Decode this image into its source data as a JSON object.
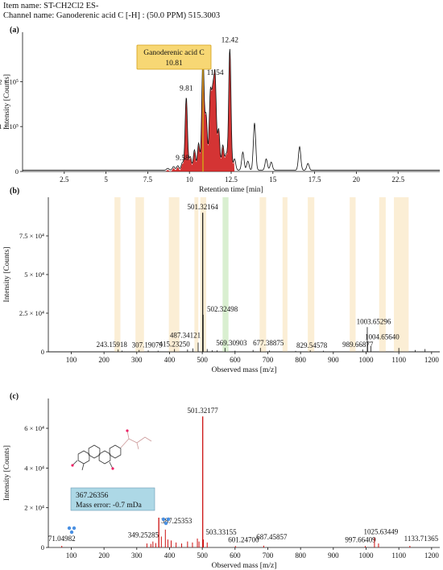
{
  "header": {
    "item_name_label": "Item name: ST-CH2Cl2 ES-",
    "channel_label": "Channel name: Ganoderenic acid C [-H] : (50.0 PPM) 515.3003"
  },
  "colors": {
    "trace": "#111111",
    "highlight_red": "#cc1111",
    "callout_fill": "#f7d774",
    "callout_border": "#d4a017",
    "band": "#fbeed5",
    "band_green": "#d9efd0",
    "label_box": "#add8e6",
    "molecule_icon": "#4a90e2"
  },
  "chart_data": [
    {
      "panel": "(a)",
      "type": "line",
      "xlabel": "Retention time [min]",
      "ylabel": "Intensity [Counts]",
      "xlim": [
        0,
        25
      ],
      "ylim": [
        0,
        310000
      ],
      "xticks": [
        2.5,
        5,
        7.5,
        10,
        12.5,
        15,
        17.5,
        20,
        22.5
      ],
      "yticks": [
        {
          "value": 0,
          "label": "0"
        },
        {
          "value": 100000,
          "label": "1 × 10⁵"
        },
        {
          "value": 200000,
          "label": "2 × 10⁵"
        }
      ],
      "callout": {
        "name": "Ganoderenic acid C",
        "value": "10.81"
      },
      "annotations": [
        {
          "x": 9.58,
          "y": 20000,
          "label": "9.58"
        },
        {
          "x": 9.81,
          "y": 175000,
          "label": "9.81"
        },
        {
          "x": 11.54,
          "y": 210000,
          "label": "11.54"
        },
        {
          "x": 12.42,
          "y": 282000,
          "label": "12.42"
        }
      ],
      "peaks": [
        {
          "x": 8.7,
          "h": 4000
        },
        {
          "x": 9.05,
          "h": 8000
        },
        {
          "x": 9.3,
          "h": 10000
        },
        {
          "x": 9.58,
          "h": 17000
        },
        {
          "x": 9.81,
          "h": 162000
        },
        {
          "x": 10.05,
          "h": 30000
        },
        {
          "x": 10.3,
          "h": 45000
        },
        {
          "x": 10.55,
          "h": 60000
        },
        {
          "x": 10.81,
          "h": 255000
        },
        {
          "x": 11.0,
          "h": 120000
        },
        {
          "x": 11.25,
          "h": 165000
        },
        {
          "x": 11.4,
          "h": 150000
        },
        {
          "x": 11.54,
          "h": 198000
        },
        {
          "x": 11.75,
          "h": 90000
        },
        {
          "x": 12.0,
          "h": 55000
        },
        {
          "x": 12.2,
          "h": 35000
        },
        {
          "x": 12.42,
          "h": 270000
        },
        {
          "x": 12.7,
          "h": 25000
        },
        {
          "x": 13.2,
          "h": 40000
        },
        {
          "x": 13.5,
          "h": 20000
        },
        {
          "x": 13.9,
          "h": 105000
        },
        {
          "x": 14.6,
          "h": 25000
        },
        {
          "x": 14.9,
          "h": 18000
        },
        {
          "x": 16.6,
          "h": 52000
        },
        {
          "x": 17.1,
          "h": 15000
        }
      ],
      "red_range": [
        8.6,
        12.7
      ]
    },
    {
      "panel": "(b)",
      "type": "bar",
      "xlabel": "Observed mass [m/z]",
      "ylabel": "Intensity [Counts]",
      "xlim": [
        30,
        1225
      ],
      "ylim": [
        0,
        100000
      ],
      "xticks": [
        100,
        200,
        300,
        400,
        500,
        600,
        700,
        800,
        900,
        1000,
        1100,
        1200
      ],
      "yticks": [
        {
          "value": 0,
          "label": "0"
        },
        {
          "value": 25000,
          "label": "2.5 × 10⁴"
        },
        {
          "value": 50000,
          "label": "5 × 10⁴"
        },
        {
          "value": 75000,
          "label": "7.5 × 10⁴"
        }
      ],
      "bands": [
        [
          232,
          250,
          "band"
        ],
        [
          296,
          322,
          "band"
        ],
        [
          398,
          430,
          "band"
        ],
        [
          476,
          488,
          "band"
        ],
        [
          494,
          512,
          "band"
        ],
        [
          562,
          580,
          "band_green"
        ],
        [
          675,
          695,
          "band"
        ],
        [
          745,
          760,
          "band"
        ],
        [
          822,
          842,
          "band"
        ],
        [
          950,
          968,
          "band"
        ],
        [
          1040,
          1060,
          "band"
        ],
        [
          1085,
          1130,
          "band"
        ]
      ],
      "labeled_peaks": [
        {
          "mz": "243.15918",
          "x": 243.16,
          "y": 1500
        },
        {
          "mz": "307.19079",
          "x": 307.19,
          "y": 1200
        },
        {
          "mz": "415.23250",
          "x": 415.23,
          "y": 1800
        },
        {
          "mz": "487.34121",
          "x": 487.34,
          "y": 6000
        },
        {
          "mz": "501.32164",
          "x": 501.32,
          "y": 90000
        },
        {
          "mz": "502.32498",
          "x": 502.32,
          "y": 24000
        },
        {
          "mz": "569.30903",
          "x": 569.31,
          "y": 2500
        },
        {
          "mz": "677.38875",
          "x": 677.39,
          "y": 2500
        },
        {
          "mz": "829.54578",
          "x": 829.55,
          "y": 1000
        },
        {
          "mz": "989.66877",
          "x": 989.67,
          "y": 1500
        },
        {
          "mz": "1003.65296",
          "x": 1003.65,
          "y": 16000
        },
        {
          "mz": "1004.65640",
          "x": 1004.66,
          "y": 6000
        }
      ],
      "minor_peaks": [
        [
          255,
          800
        ],
        [
          335,
          900
        ],
        [
          365,
          700
        ],
        [
          455,
          1500
        ],
        [
          471,
          2200
        ],
        [
          515,
          1800
        ],
        [
          530,
          1000
        ],
        [
          545,
          900
        ],
        [
          600,
          700
        ],
        [
          655,
          1200
        ],
        [
          705,
          800
        ],
        [
          785,
          600
        ],
        [
          870,
          700
        ],
        [
          1015,
          3500
        ],
        [
          1100,
          2500
        ],
        [
          1150,
          1200
        ],
        [
          1180,
          1800
        ]
      ]
    },
    {
      "panel": "(c)",
      "type": "bar",
      "xlabel": "Observed mass [m/z]",
      "ylabel": "Intensity [Counts]",
      "xlim": [
        30,
        1225
      ],
      "ylim": [
        0,
        75000
      ],
      "xticks": [
        100,
        200,
        300,
        400,
        500,
        600,
        700,
        800,
        900,
        1000,
        1100,
        1200
      ],
      "yticks": [
        {
          "value": 0,
          "label": "0"
        },
        {
          "value": 20000,
          "label": "2 × 10⁴"
        },
        {
          "value": 40000,
          "label": "4 × 10⁴"
        },
        {
          "value": 60000,
          "label": "6 × 10⁴"
        }
      ],
      "fragment_box": {
        "mz": "367.26356",
        "error": "Mass error: -0.7 mDa"
      },
      "labeled_peaks": [
        {
          "mz": "71.04982",
          "x": 71.05,
          "y": 800
        },
        {
          "mz": "349.25285",
          "x": 349.25,
          "y": 3000
        },
        {
          "mz": "367.26356",
          "x": 367.26,
          "y": 15000
        },
        {
          "mz": "387.25353",
          "x": 387.25,
          "y": 9000
        },
        {
          "mz": "501.32177",
          "x": 501.32,
          "y": 66000
        },
        {
          "mz": "503.33155",
          "x": 503.33,
          "y": 4000
        },
        {
          "mz": "601.24700",
          "x": 601.25,
          "y": 700
        },
        {
          "mz": "687.45857",
          "x": 687.46,
          "y": 900
        },
        {
          "mz": "997.66409",
          "x": 997.66,
          "y": 700
        },
        {
          "mz": "1025.63449",
          "x": 1025.63,
          "y": 5000
        },
        {
          "mz": "1133.71365",
          "x": 1133.71,
          "y": 800
        }
      ],
      "minor_peaks": [
        [
          331,
          2000
        ],
        [
          343,
          1800
        ],
        [
          358,
          2200
        ],
        [
          375,
          5500
        ],
        [
          395,
          4000
        ],
        [
          405,
          3500
        ],
        [
          420,
          2500
        ],
        [
          437,
          2000
        ],
        [
          455,
          3000
        ],
        [
          470,
          2500
        ],
        [
          485,
          4500
        ],
        [
          490,
          3000
        ],
        [
          515,
          2500
        ],
        [
          1038,
          2000
        ]
      ]
    }
  ]
}
